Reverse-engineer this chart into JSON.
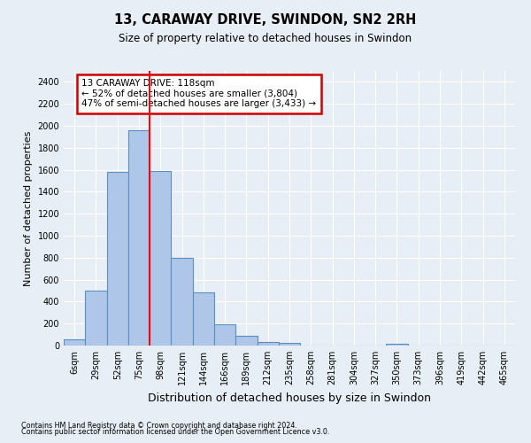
{
  "title": "13, CARAWAY DRIVE, SWINDON, SN2 2RH",
  "subtitle": "Size of property relative to detached houses in Swindon",
  "xlabel": "Distribution of detached houses by size in Swindon",
  "ylabel": "Number of detached properties",
  "categories": [
    "6sqm",
    "29sqm",
    "52sqm",
    "75sqm",
    "98sqm",
    "121sqm",
    "144sqm",
    "166sqm",
    "189sqm",
    "212sqm",
    "235sqm",
    "258sqm",
    "281sqm",
    "304sqm",
    "327sqm",
    "350sqm",
    "373sqm",
    "396sqm",
    "419sqm",
    "442sqm",
    "465sqm"
  ],
  "bar_values": [
    60,
    500,
    1580,
    1960,
    1590,
    800,
    480,
    195,
    90,
    35,
    25,
    0,
    0,
    0,
    0,
    20,
    0,
    0,
    0,
    0,
    0
  ],
  "bar_color": "#aec6e8",
  "bar_edge_color": "#5a8fc0",
  "bg_color": "#e8eef5",
  "grid_color": "#ffffff",
  "red_line_x": 3.5,
  "annotation_text": "13 CARAWAY DRIVE: 118sqm\n← 52% of detached houses are smaller (3,804)\n47% of semi-detached houses are larger (3,433) →",
  "annotation_box_color": "#ffffff",
  "annotation_box_edge": "#cc0000",
  "ylim": [
    0,
    2500
  ],
  "yticks": [
    0,
    200,
    400,
    600,
    800,
    1000,
    1200,
    1400,
    1600,
    1800,
    2000,
    2200,
    2400
  ],
  "footer1": "Contains HM Land Registry data © Crown copyright and database right 2024.",
  "footer2": "Contains public sector information licensed under the Open Government Licence v3.0.",
  "title_fontsize": 10.5,
  "subtitle_fontsize": 8.5,
  "ylabel_fontsize": 8,
  "xlabel_fontsize": 9,
  "tick_fontsize": 7,
  "annot_fontsize": 7.5,
  "footer_fontsize": 5.8
}
